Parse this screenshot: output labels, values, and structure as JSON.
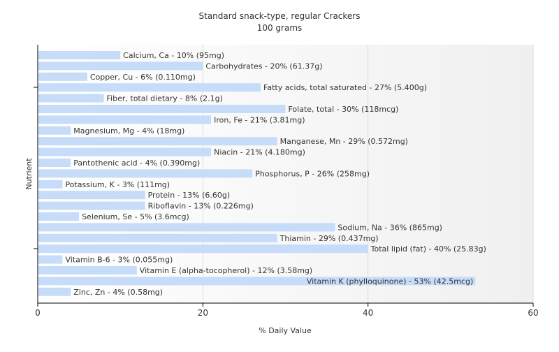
{
  "chart_data": {
    "type": "bar",
    "orientation": "horizontal",
    "title": "Standard snack-type, regular Crackers",
    "subtitle": "100 grams",
    "xlabel": "% Daily Value",
    "ylabel": "Nutrient",
    "xlim": [
      0,
      60
    ],
    "xticks": [
      "0",
      "20",
      "40",
      "60"
    ],
    "grid": true,
    "bar_color": "#c6dcf8",
    "categories": [
      "Calcium, Ca",
      "Carbohydrates",
      "Copper, Cu",
      "Fatty acids, total saturated",
      "Fiber, total dietary",
      "Folate, total",
      "Iron, Fe",
      "Magnesium, Mg",
      "Manganese, Mn",
      "Niacin",
      "Pantothenic acid",
      "Phosphorus, P",
      "Potassium, K",
      "Protein",
      "Riboflavin",
      "Selenium, Se",
      "Sodium, Na",
      "Thiamin",
      "Total lipid (fat)",
      "Vitamin B-6",
      "Vitamin E (alpha-tocopherol)",
      "Vitamin K (phylloquinone)",
      "Zinc, Zn"
    ],
    "values": [
      10,
      20,
      6,
      27,
      8,
      30,
      21,
      4,
      29,
      21,
      4,
      26,
      3,
      13,
      13,
      5,
      36,
      29,
      40,
      3,
      12,
      53,
      4
    ],
    "labels": [
      "Calcium, Ca - 10% (95mg)",
      "Carbohydrates - 20% (61.37g)",
      "Copper, Cu - 6% (0.110mg)",
      "Fatty acids, total saturated - 27% (5.400g)",
      "Fiber, total dietary - 8% (2.1g)",
      "Folate, total - 30% (118mcg)",
      "Iron, Fe - 21% (3.81mg)",
      "Magnesium, Mg - 4% (18mg)",
      "Manganese, Mn - 29% (0.572mg)",
      "Niacin - 21% (4.180mg)",
      "Pantothenic acid - 4% (0.390mg)",
      "Phosphorus, P - 26% (258mg)",
      "Potassium, K - 3% (111mg)",
      "Protein - 13% (6.60g)",
      "Riboflavin - 13% (0.226mg)",
      "Selenium, Se - 5% (3.6mcg)",
      "Sodium, Na - 36% (865mg)",
      "Thiamin - 29% (0.437mg)",
      "Total lipid (fat) - 40% (25.83g)",
      "Vitamin B-6 - 3% (0.055mg)",
      "Vitamin E (alpha-tocopherol) - 12% (3.58mg)",
      "Vitamin K (phylloquinone) - 53% (42.5mcg)",
      "Zinc, Zn - 4% (0.58mg)"
    ]
  }
}
